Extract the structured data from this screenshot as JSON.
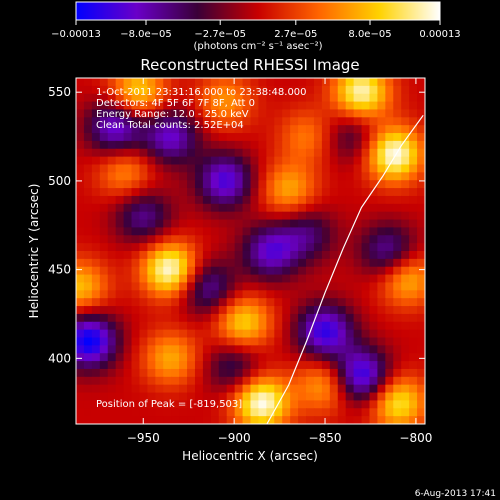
{
  "chart_data": {
    "type": "heatmap",
    "title": "Reconstructed RHESSI Image",
    "xlabel": "Heliocentric X (arcsec)",
    "ylabel": "Heliocentric Y (arcsec)",
    "xlim": [
      -987,
      -795
    ],
    "ylim": [
      363,
      558
    ],
    "xticks": [
      -950,
      -900,
      -850,
      -800
    ],
    "xtick_labels": [
      "−950",
      "−900",
      "−850",
      "−800"
    ],
    "yticks": [
      400,
      450,
      500,
      550
    ],
    "ytick_labels": [
      "400",
      "450",
      "500",
      "550"
    ],
    "colorbar": {
      "min": -0.00013,
      "max": 0.00013,
      "ticks": [
        -0.00013,
        -8e-05,
        -2.7e-05,
        2.7e-05,
        8e-05,
        0.00013
      ],
      "tick_labels": [
        "−0.00013",
        "−8.0e−05",
        "−2.7e−05",
        "2.7e−05",
        "8.0e−05",
        "0.00013"
      ],
      "unit_label": "(photons cm⁻² s⁻¹ asec⁻²)",
      "colormap": [
        "#0000ff",
        "#6a00c8",
        "#3a0038",
        "#c80000",
        "#ff6400",
        "#ffd200",
        "#ffffff"
      ]
    },
    "annotations": [
      "1-Oct-2011 23:31:16.000 to 23:38:48.000",
      "Detectors: 4F 5F 6F 7F 8F, Att 0",
      "Energy Range: 12.0 - 25.0 keV",
      "Clean    Total counts: 2.52E+04"
    ],
    "peak_label": "Position of Peak = [-819,503]",
    "limb_line": [
      [
        -882,
        363
      ],
      [
        -870,
        385
      ],
      [
        -860,
        410
      ],
      [
        -850,
        437
      ],
      [
        -840,
        462
      ],
      [
        -830,
        485
      ],
      [
        -818,
        503
      ],
      [
        -808,
        520
      ],
      [
        -796,
        537
      ]
    ],
    "sources": [
      {
        "x": -953,
        "y": 550,
        "v": 9e-05
      },
      {
        "x": -905,
        "y": 545,
        "v": 6e-05
      },
      {
        "x": -830,
        "y": 550,
        "v": 0.00012
      },
      {
        "x": -812,
        "y": 515,
        "v": 0.00013
      },
      {
        "x": -870,
        "y": 495,
        "v": 7e-05
      },
      {
        "x": -960,
        "y": 505,
        "v": 6e-05
      },
      {
        "x": -935,
        "y": 450,
        "v": 0.00013
      },
      {
        "x": -985,
        "y": 440,
        "v": 8e-05
      },
      {
        "x": -895,
        "y": 420,
        "v": 9e-05
      },
      {
        "x": -935,
        "y": 400,
        "v": 7e-05
      },
      {
        "x": -885,
        "y": 375,
        "v": 0.00013
      },
      {
        "x": -850,
        "y": 385,
        "v": 7e-05
      },
      {
        "x": -810,
        "y": 375,
        "v": 0.0001
      },
      {
        "x": -805,
        "y": 445,
        "v": 8e-05
      },
      {
        "x": -860,
        "y": 525,
        "v": 5e-05
      },
      {
        "x": -980,
        "y": 410,
        "v": -0.00013
      },
      {
        "x": -965,
        "y": 530,
        "v": -0.0001
      },
      {
        "x": -935,
        "y": 525,
        "v": -9e-05
      },
      {
        "x": -905,
        "y": 500,
        "v": -0.0001
      },
      {
        "x": -880,
        "y": 460,
        "v": -9e-05
      },
      {
        "x": -850,
        "y": 415,
        "v": -0.00011
      },
      {
        "x": -830,
        "y": 390,
        "v": -0.00012
      },
      {
        "x": -815,
        "y": 460,
        "v": -8e-05
      },
      {
        "x": -900,
        "y": 395,
        "v": -6e-05
      },
      {
        "x": -950,
        "y": 480,
        "v": -7e-05
      },
      {
        "x": -860,
        "y": 470,
        "v": -6e-05
      },
      {
        "x": -835,
        "y": 525,
        "v": -5e-05
      },
      {
        "x": -915,
        "y": 440,
        "v": -8e-05
      }
    ]
  },
  "footer": {
    "timestamp": "6-Aug-2013 17:41"
  }
}
